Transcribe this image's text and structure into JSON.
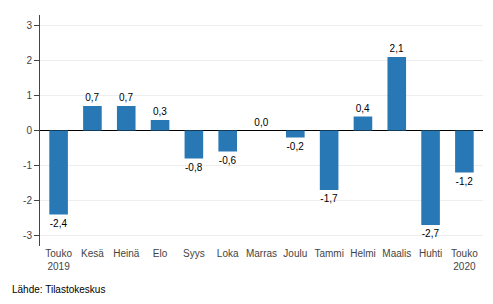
{
  "chart_data": {
    "type": "bar",
    "categories": [
      "Touko\n2019",
      "Kesä",
      "Heinä",
      "Elo",
      "Syys",
      "Loka",
      "Marras",
      "Joulu",
      "Tammi",
      "Helmi",
      "Maalis",
      "Huhti",
      "Touko\n2020"
    ],
    "values": [
      -2.4,
      0.7,
      0.7,
      0.3,
      -0.8,
      -0.6,
      0.0,
      -0.2,
      -1.7,
      0.4,
      2.1,
      -2.7,
      -1.2
    ],
    "value_labels": [
      "-2,4",
      "0,7",
      "0,7",
      "0,3",
      "-0,8",
      "-0,6",
      "0,0",
      "-0,2",
      "-1,7",
      "0,4",
      "2,1",
      "-2,7",
      "-1,2"
    ],
    "data_labels": true,
    "color": "#2878b5",
    "ylim": [
      -3.3,
      3.3
    ],
    "yticks": [
      -3,
      -2,
      -1,
      0,
      1,
      2,
      3
    ],
    "grid": true,
    "annotations": [
      "Lähde: Tilastokeskus"
    ]
  }
}
